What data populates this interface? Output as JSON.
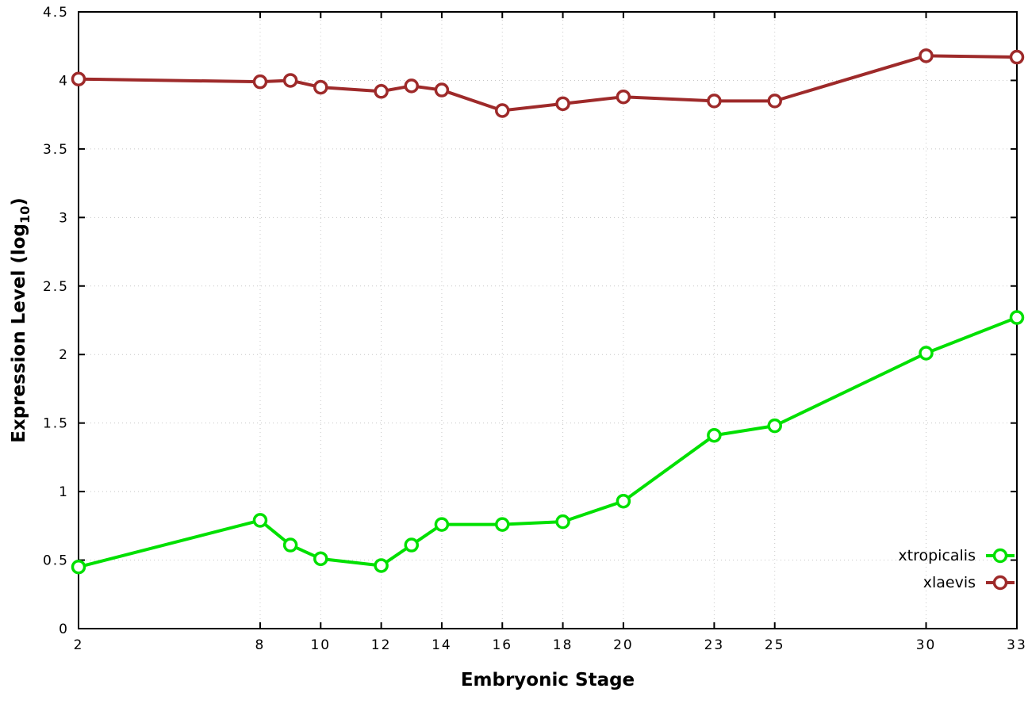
{
  "labels": {
    "xlabel": "Embryonic Stage",
    "ylabel_prefix": "Expression Level (log",
    "ylabel_sub": "10",
    "ylabel_suffix": ")"
  },
  "chart_data": {
    "type": "line",
    "title": "",
    "xlabel": "Embryonic Stage",
    "ylabel": "Expression Level (log10)",
    "xlim": [
      2,
      33
    ],
    "ylim": [
      0,
      4.5
    ],
    "grid": true,
    "grid_color": "#c8c8c8",
    "border_color": "#000000",
    "background": "#ffffff",
    "legend_position": "bottom-right",
    "xtick_values": [
      2,
      8,
      10,
      12,
      14,
      16,
      18,
      20,
      23,
      25,
      30,
      33
    ],
    "xtick_labels": [
      "2",
      "8",
      "10",
      "12",
      "14",
      "16",
      "18",
      "20",
      "23",
      "25",
      "30",
      "33"
    ],
    "ytick_values": [
      0,
      0.5,
      1,
      1.5,
      2,
      2.5,
      3,
      3.5,
      4,
      4.5
    ],
    "ytick_labels": [
      "0",
      "0.5",
      "1",
      "1.5",
      "2",
      "2.5",
      "3",
      "3.5",
      "4",
      "4.5"
    ],
    "x_shared": [
      2,
      8,
      9,
      10,
      12,
      13,
      14,
      16,
      18,
      20,
      23,
      25,
      30,
      33
    ],
    "series": [
      {
        "name": "xtropicalis",
        "color": "#00e000",
        "x": [
          2,
          8,
          9,
          10,
          12,
          13,
          14,
          16,
          18,
          20,
          23,
          25,
          30,
          33
        ],
        "y": [
          0.45,
          0.79,
          0.61,
          0.51,
          0.46,
          0.61,
          0.76,
          0.76,
          0.78,
          0.93,
          1.41,
          1.48,
          2.01,
          2.27
        ]
      },
      {
        "name": "xlaevis",
        "color": "#9e2a2a",
        "x": [
          2,
          8,
          9,
          10,
          12,
          13,
          14,
          16,
          18,
          20,
          23,
          25,
          30,
          33
        ],
        "y": [
          4.01,
          3.99,
          4.0,
          3.95,
          3.92,
          3.96,
          3.93,
          3.78,
          3.83,
          3.88,
          3.85,
          3.85,
          4.18,
          4.17
        ]
      }
    ]
  }
}
